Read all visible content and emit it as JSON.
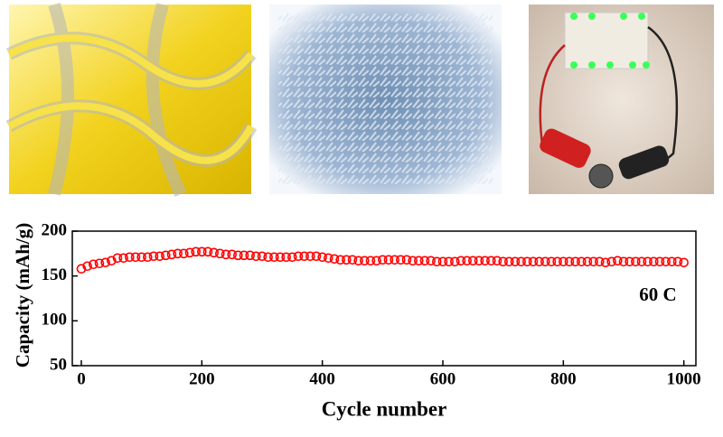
{
  "chart_data": {
    "type": "scatter",
    "xlabel": "Cycle number",
    "ylabel": "Capacity (mAh/g)",
    "annotation": "60 C",
    "x": [
      0,
      10,
      20,
      30,
      40,
      50,
      60,
      70,
      80,
      90,
      100,
      110,
      120,
      130,
      140,
      150,
      160,
      170,
      180,
      190,
      200,
      210,
      220,
      230,
      240,
      250,
      260,
      270,
      280,
      290,
      300,
      310,
      320,
      330,
      340,
      350,
      360,
      370,
      380,
      390,
      400,
      410,
      420,
      430,
      440,
      450,
      460,
      470,
      480,
      490,
      500,
      510,
      520,
      530,
      540,
      550,
      560,
      570,
      580,
      590,
      600,
      610,
      620,
      630,
      640,
      650,
      660,
      670,
      680,
      690,
      700,
      710,
      720,
      730,
      740,
      750,
      760,
      770,
      780,
      790,
      800,
      810,
      820,
      830,
      840,
      850,
      860,
      870,
      880,
      890,
      900,
      910,
      920,
      930,
      940,
      950,
      960,
      970,
      980,
      990,
      1000
    ],
    "values": [
      158,
      161,
      163,
      164,
      165,
      167,
      170,
      170,
      171,
      171,
      171,
      171,
      172,
      172,
      173,
      174,
      175,
      175,
      176,
      177,
      177,
      177,
      176,
      175,
      174,
      174,
      173,
      173,
      173,
      172,
      172,
      171,
      171,
      171,
      171,
      171,
      172,
      172,
      172,
      172,
      171,
      170,
      169,
      168,
      168,
      168,
      167,
      167,
      167,
      167,
      168,
      168,
      168,
      168,
      168,
      167,
      167,
      167,
      167,
      166,
      166,
      166,
      166,
      167,
      167,
      167,
      167,
      167,
      167,
      167,
      166,
      166,
      166,
      166,
      166,
      166,
      166,
      166,
      166,
      166,
      166,
      166,
      166,
      166,
      166,
      166,
      166,
      165,
      166,
      167,
      166,
      166,
      166,
      166,
      166,
      166,
      166,
      166,
      166,
      166,
      165
    ],
    "color": "#ff0000",
    "xlim": [
      -15,
      1020
    ],
    "ylim": [
      50,
      200
    ],
    "xticks": [
      0,
      200,
      400,
      600,
      800,
      1000
    ],
    "yticks": [
      50,
      100,
      150,
      200
    ]
  }
}
